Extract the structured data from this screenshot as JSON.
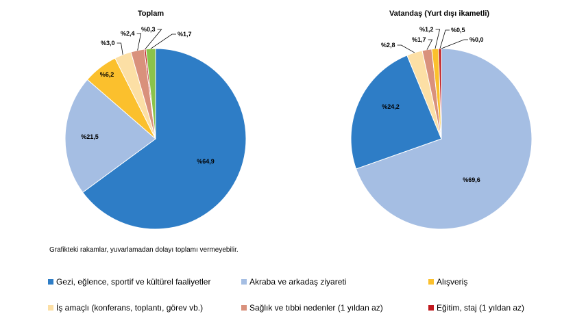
{
  "colors": {
    "leisure": "#2E7DC6",
    "visit": "#A5BEE3",
    "shopping": "#FBC02D",
    "business": "#FCDFA5",
    "health": "#D9917C",
    "education": "#C0191E",
    "other": "#8BC34A"
  },
  "chart_data": [
    {
      "type": "pie",
      "title": "Toplam",
      "slices": [
        {
          "category": "leisure",
          "value": 64.9,
          "label": "%64,9"
        },
        {
          "category": "visit",
          "value": 21.5,
          "label": "%21,5"
        },
        {
          "category": "shopping",
          "value": 6.2,
          "label": "%6,2"
        },
        {
          "category": "business",
          "value": 3.0,
          "label": "%3,0"
        },
        {
          "category": "health",
          "value": 2.4,
          "label": "%2,4"
        },
        {
          "category": "education",
          "value": 0.3,
          "label": "%0,3"
        },
        {
          "category": "other",
          "value": 1.7,
          "label": "%1,7"
        }
      ]
    },
    {
      "type": "pie",
      "title": "Vatandaş (Yurt dışı ikametli)",
      "slices": [
        {
          "category": "visit",
          "value": 69.6,
          "label": "%69,6"
        },
        {
          "category": "leisure",
          "value": 24.2,
          "label": "%24,2"
        },
        {
          "category": "business",
          "value": 2.8,
          "label": "%2,8"
        },
        {
          "category": "health",
          "value": 1.7,
          "label": "%1,7"
        },
        {
          "category": "shopping",
          "value": 1.2,
          "label": "%1,2"
        },
        {
          "category": "education",
          "value": 0.5,
          "label": "%0,5"
        },
        {
          "category": "other",
          "value": 0.0,
          "label": "%0,0"
        }
      ]
    }
  ],
  "note": "Grafikteki rakamlar, yuvarlamadan dolayı toplamı vermeyebilir.",
  "legend": [
    {
      "category": "leisure",
      "label": "Gezi, eğlence, sportif ve kültürel faaliyetler"
    },
    {
      "category": "visit",
      "label": "Akraba ve arkadaş ziyareti"
    },
    {
      "category": "shopping",
      "label": "Alışveriş"
    },
    {
      "category": "business",
      "label": "İş amaçlı (konferans, toplantı, görev vb.)"
    },
    {
      "category": "health",
      "label": "Sağlık ve tıbbi nedenler (1 yıldan az)"
    },
    {
      "category": "education",
      "label": "Eğitim, staj (1 yıldan az)"
    }
  ]
}
